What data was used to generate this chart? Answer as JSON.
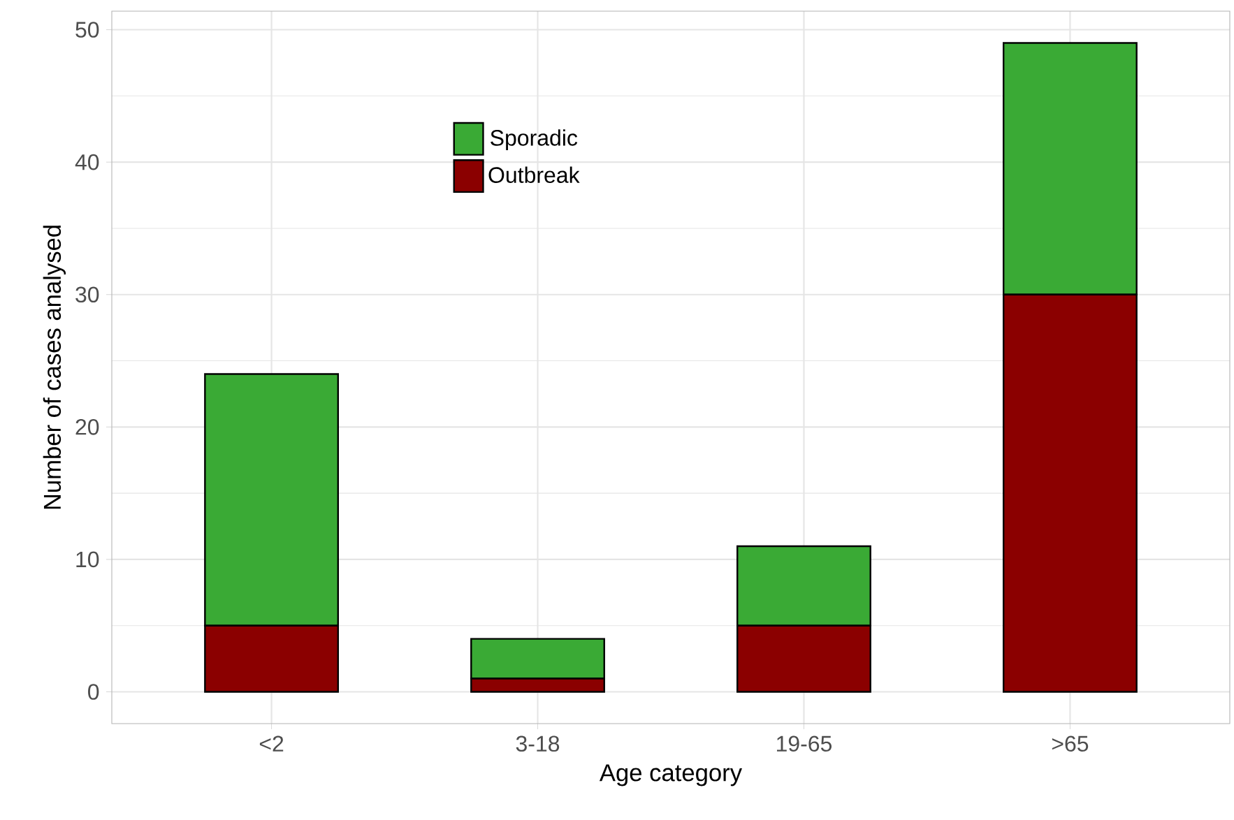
{
  "chart_data": {
    "type": "bar",
    "stacked": true,
    "xlabel": "Age category",
    "ylabel": "Number of cases analysed",
    "categories": [
      "<2",
      "3-18",
      "19-65",
      ">65"
    ],
    "series": [
      {
        "name": "Outbreak",
        "color": "#8b0000",
        "values": [
          5,
          1,
          5,
          30
        ]
      },
      {
        "name": "Sporadic",
        "color": "#3aaa35",
        "values": [
          19,
          3,
          6,
          19
        ]
      }
    ],
    "ylim": [
      -2.4,
      51.4
    ],
    "yticks": [
      0,
      10,
      20,
      30,
      40,
      50
    ],
    "grid": true,
    "legend": "top left"
  }
}
